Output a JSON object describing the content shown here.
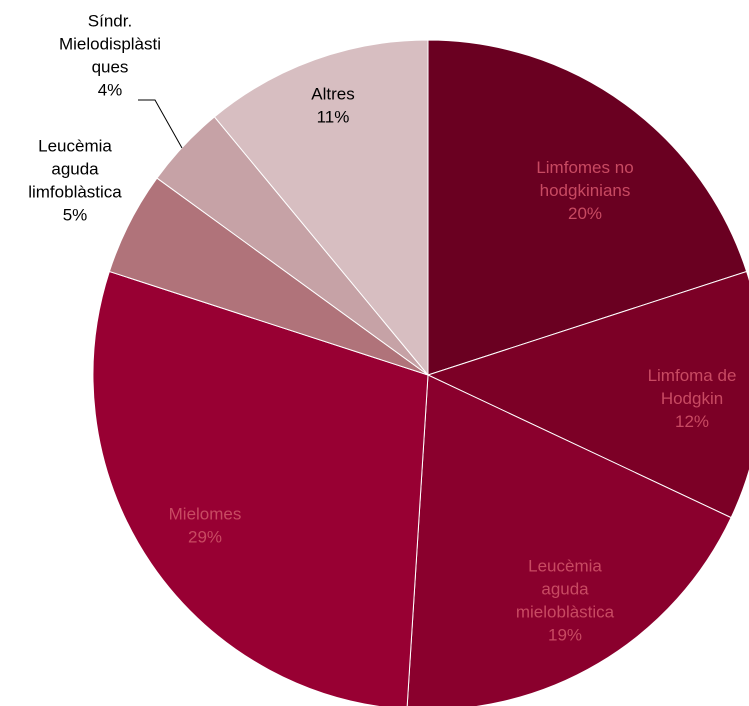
{
  "chart_data": {
    "type": "pie",
    "categories": [
      [
        "Limfomes no",
        "hodgkinians"
      ],
      [
        "Limfoma de",
        "Hodgkin"
      ],
      [
        "Leucèmia",
        "aguda",
        "mieloblàstica"
      ],
      [
        "Mielomes"
      ],
      [
        "Leucèmia",
        "aguda",
        "limfoblàstica"
      ],
      [
        "Síndr.",
        "Mielodisplàsti",
        "ques"
      ],
      [
        "Altres"
      ]
    ],
    "values": [
      20,
      12,
      19,
      29,
      5,
      4,
      11
    ],
    "value_labels": [
      "20%",
      "12%",
      "19%",
      "29%",
      "5%",
      "4%",
      "11%"
    ],
    "colors": [
      "#6a0021",
      "#7c0026",
      "#8a002d",
      "#980033",
      "#b0737a",
      "#c6a2a6",
      "#d7bec1"
    ]
  }
}
